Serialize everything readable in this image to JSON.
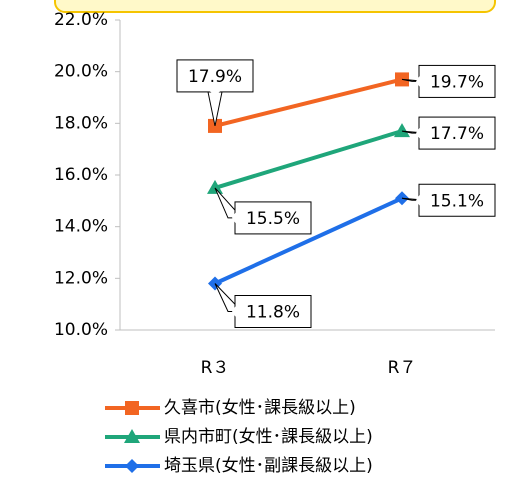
{
  "chart_data": {
    "type": "line",
    "categories": [
      "R３",
      "R７"
    ],
    "series": [
      {
        "name": "久喜市(女性･課長級以上)",
        "color": "#f26522",
        "marker": "square",
        "values": [
          17.9,
          19.7
        ],
        "value_labels": [
          "17.9%",
          "19.7%"
        ]
      },
      {
        "name": "県内市町(女性･課長級以上)",
        "color": "#1fa67a",
        "marker": "triangle",
        "values": [
          15.5,
          17.7
        ],
        "value_labels": [
          "15.5%",
          "17.7%"
        ]
      },
      {
        "name": "埼玉県(女性･副課長級以上)",
        "color": "#1f6fe8",
        "marker": "diamond",
        "values": [
          11.8,
          15.1
        ],
        "value_labels": [
          "11.8%",
          "15.1%"
        ]
      }
    ],
    "ylim": [
      10,
      22
    ],
    "yticks": [
      {
        "value": 10,
        "label": "10.0%"
      },
      {
        "value": 12,
        "label": "12.0%"
      },
      {
        "value": 14,
        "label": "14.0%"
      },
      {
        "value": 16,
        "label": "16.0%"
      },
      {
        "value": 18,
        "label": "18.0%"
      },
      {
        "value": 20,
        "label": "20.0%"
      },
      {
        "value": 22,
        "label": "22.0%"
      }
    ],
    "grid": false
  }
}
